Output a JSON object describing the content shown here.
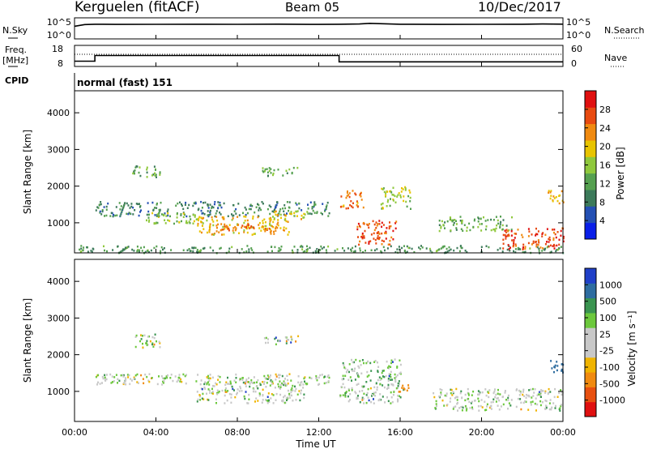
{
  "header": {
    "station": "Kerguelen (fitACF)",
    "beam": "Beam 05",
    "date": "10/Dec/2017"
  },
  "nsky_panel": {
    "left_label": "N.Sky",
    "tick_hi": "10^5",
    "tick_lo": "10^0",
    "right_label": "N.Search"
  },
  "freq_panel": {
    "left_label_1": "Freq.",
    "left_label_2": "[MHz]",
    "tick_hi": "18",
    "tick_lo": "8",
    "right_tick_hi": "60",
    "right_tick_lo": "0",
    "right_label": "Nave"
  },
  "cpid_panel": {
    "label": "CPID",
    "program": "normal (fast) 151"
  },
  "x_axis": {
    "ticks": [
      "00:00",
      "04:00",
      "08:00",
      "12:00",
      "16:00",
      "20:00",
      "00:00"
    ],
    "label": "Time UT"
  },
  "power_panel": {
    "ylabel": "Slant Range [km]",
    "yticks": [
      "4000",
      "3000",
      "2000",
      "1000"
    ],
    "colorbar_label": "Power [dB]",
    "colorbar_ticks": [
      "28",
      "24",
      "20",
      "16",
      "12",
      "8",
      "4"
    ]
  },
  "velocity_panel": {
    "ylabel": "Slant Range [km]",
    "yticks": [
      "4000",
      "3000",
      "2000",
      "1000"
    ],
    "colorbar_label": "Velocity [m s⁻¹]",
    "colorbar_ticks": [
      "1000",
      "500",
      "100",
      "25",
      "-25",
      "-100",
      "-500",
      "-1000"
    ]
  },
  "colors": {
    "power_scale": [
      "#0a1fe8",
      "#2450b4",
      "#3c7a5a",
      "#55a050",
      "#8fc83c",
      "#e8c400",
      "#f08a10",
      "#e84a10",
      "#e01010"
    ],
    "velocity_scale": [
      "#2040c8",
      "#2e6da0",
      "#3a9450",
      "#6cc83c",
      "#c8c8c8",
      "#c8c8c8",
      "#f0b400",
      "#f08a10",
      "#e85010",
      "#e01010"
    ]
  },
  "chart_data": [
    {
      "type": "line",
      "title": "N.Sky",
      "x": [
        0,
        0.5,
        1,
        2,
        4,
        6,
        8,
        10,
        12,
        13,
        14,
        14.5,
        15,
        16,
        18,
        20,
        22,
        23,
        24
      ],
      "y": [
        1000,
        2500,
        3000,
        2800,
        2900,
        3000,
        2900,
        3100,
        2800,
        3000,
        3500,
        5000,
        4200,
        3000,
        2800,
        2900,
        3000,
        3500,
        3200
      ],
      "ylim": [
        1,
        100000
      ],
      "yscale": "log"
    },
    {
      "type": "line",
      "title": "Freq. [MHz]",
      "x": [
        0,
        1,
        1,
        13,
        13,
        24
      ],
      "y": [
        10.5,
        10.5,
        13.2,
        13.2,
        10.2,
        10.2
      ],
      "ylim": [
        8,
        18
      ]
    },
    {
      "type": "heatmap",
      "title": "Power [dB]",
      "xlabel": "Time UT",
      "ylabel": "Slant Range [km]",
      "xlim": [
        0,
        24
      ],
      "ylim": [
        180,
        4600
      ],
      "zlim": [
        0,
        30
      ],
      "regions": [
        {
          "t": [
            0.2,
            24
          ],
          "r": [
            200,
            400
          ],
          "power": 10
        },
        {
          "t": [
            1,
            12.5
          ],
          "r": [
            1200,
            1600
          ],
          "power": 8
        },
        {
          "t": [
            3.5,
            6.5
          ],
          "r": [
            1000,
            1300
          ],
          "power": 14
        },
        {
          "t": [
            6,
            10.5
          ],
          "r": [
            700,
            1200
          ],
          "power": 20
        },
        {
          "t": [
            7,
            10
          ],
          "r": [
            750,
            1000
          ],
          "power": 24
        },
        {
          "t": [
            9.5,
            11.5
          ],
          "r": [
            1100,
            1350
          ],
          "power": 18
        },
        {
          "t": [
            2.8,
            4.2
          ],
          "r": [
            2250,
            2600
          ],
          "power": 12
        },
        {
          "t": [
            9.2,
            11
          ],
          "r": [
            2300,
            2550
          ],
          "power": 12
        },
        {
          "t": [
            13,
            14.2
          ],
          "r": [
            1400,
            1900
          ],
          "power": 24
        },
        {
          "t": [
            13.8,
            15.8
          ],
          "r": [
            400,
            1100
          ],
          "power": 26
        },
        {
          "t": [
            15,
            16.5
          ],
          "r": [
            1400,
            2000
          ],
          "power": 16
        },
        {
          "t": [
            17.8,
            21.5
          ],
          "r": [
            800,
            1200
          ],
          "power": 12
        },
        {
          "t": [
            21,
            24
          ],
          "r": [
            300,
            900
          ],
          "power": 26
        },
        {
          "t": [
            23.2,
            24
          ],
          "r": [
            1500,
            1900
          ],
          "power": 20
        }
      ]
    },
    {
      "type": "heatmap",
      "title": "Velocity [m s-1]",
      "xlabel": "Time UT",
      "ylabel": "Slant Range [km]",
      "xlim": [
        0,
        24
      ],
      "ylim": [
        180,
        4600
      ],
      "zlim": [
        -1000,
        1000
      ],
      "regions": [
        {
          "t": [
            1,
            12.5
          ],
          "r": [
            1200,
            1500
          ],
          "velocity": 0
        },
        {
          "t": [
            6,
            11.5
          ],
          "r": [
            700,
            1300
          ],
          "velocity": 0
        },
        {
          "t": [
            2.8,
            4.2
          ],
          "r": [
            2200,
            2600
          ],
          "velocity": 0
        },
        {
          "t": [
            9.2,
            11
          ],
          "r": [
            2300,
            2550
          ],
          "velocity": 0
        },
        {
          "t": [
            13,
            16
          ],
          "r": [
            700,
            1900
          ],
          "velocity": 10
        },
        {
          "t": [
            15.8,
            16.4
          ],
          "r": [
            900,
            1200
          ],
          "velocity": -300
        },
        {
          "t": [
            17.5,
            24
          ],
          "r": [
            500,
            1100
          ],
          "velocity": 0
        },
        {
          "t": [
            23.3,
            24
          ],
          "r": [
            1500,
            1900
          ],
          "velocity": 400
        }
      ]
    }
  ]
}
